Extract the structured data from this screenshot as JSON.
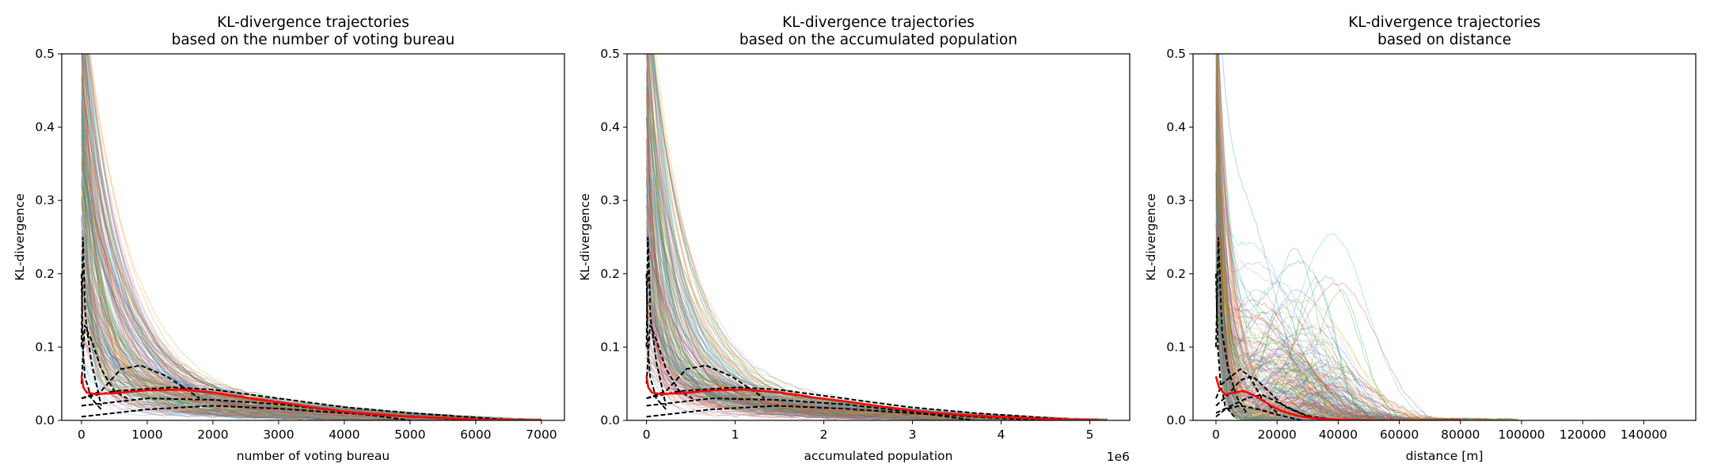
{
  "chart_data": [
    {
      "type": "line",
      "title": [
        "KL-divergence trajectories",
        "based on the number of voting bureau"
      ],
      "xlabel": "number of voting bureau",
      "ylabel": "KL-divergence",
      "offset_label": "",
      "xlim": [
        -300,
        7350
      ],
      "ylim": [
        0,
        0.5
      ],
      "xticks": [
        0,
        1000,
        2000,
        3000,
        4000,
        5000,
        6000,
        7000
      ],
      "xtick_labels": [
        "0",
        "1000",
        "2000",
        "3000",
        "4000",
        "5000",
        "6000",
        "7000"
      ],
      "yticks": [
        0.0,
        0.1,
        0.2,
        0.3,
        0.4,
        0.5
      ],
      "ytick_labels": [
        "0.0",
        "0.1",
        "0.2",
        "0.3",
        "0.4",
        "0.5"
      ],
      "grid": false,
      "trajectory_count": 200,
      "trajectory_x_end": 7000,
      "trajectory_shape": "decay",
      "median": {
        "color": "#ff0000",
        "x": [
          0,
          30,
          80,
          200,
          500,
          1000,
          1500,
          2000,
          2500,
          3000,
          3500,
          4000,
          4500,
          5000,
          5500,
          6000,
          6500,
          7000
        ],
        "y": [
          0.06,
          0.045,
          0.038,
          0.036,
          0.037,
          0.041,
          0.042,
          0.038,
          0.031,
          0.025,
          0.018,
          0.012,
          0.008,
          0.005,
          0.003,
          0.001,
          0.0005,
          0
        ]
      },
      "dashed": [
        {
          "x": [
            0,
            20,
            60,
            150,
            300
          ],
          "y": [
            0.1,
            0.25,
            0.14,
            0.08,
            0.02
          ]
        },
        {
          "x": [
            0,
            50,
            150,
            300,
            500,
            700
          ],
          "y": [
            0.05,
            0.13,
            0.11,
            0.07,
            0.04,
            0.03
          ]
        },
        {
          "x": [
            0,
            300,
            600,
            900,
            1300,
            1800
          ],
          "y": [
            0.03,
            0.04,
            0.07,
            0.075,
            0.06,
            0.03
          ]
        },
        {
          "x": [
            0,
            500,
            1000,
            1400,
            2000,
            3000,
            4000,
            5000,
            6000,
            6600
          ],
          "y": [
            0.03,
            0.04,
            0.043,
            0.045,
            0.042,
            0.03,
            0.018,
            0.01,
            0.004,
            0
          ]
        },
        {
          "x": [
            0,
            500,
            1000,
            2000,
            3000,
            4000,
            5000,
            6000
          ],
          "y": [
            0.005,
            0.01,
            0.015,
            0.02,
            0.016,
            0.01,
            0.005,
            0
          ]
        },
        {
          "x": [
            0,
            1000,
            2000,
            3000,
            4000,
            5000
          ],
          "y": [
            0.02,
            0.03,
            0.028,
            0.022,
            0.012,
            0
          ]
        },
        {
          "x": [
            0,
            20,
            50,
            150,
            300
          ],
          "y": [
            0.2,
            0.1,
            0.06,
            0.03,
            0.015
          ]
        }
      ]
    },
    {
      "type": "line",
      "title": [
        "KL-divergence trajectories",
        "based on the accumulated population"
      ],
      "xlabel": "accumulated population",
      "ylabel": "KL-divergence",
      "offset_label": "1e6",
      "xlim": [
        -0.22,
        5.45
      ],
      "ylim": [
        0,
        0.5
      ],
      "xticks": [
        0,
        1,
        2,
        3,
        4,
        5
      ],
      "xtick_labels": [
        "0",
        "1",
        "2",
        "3",
        "4",
        "5"
      ],
      "yticks": [
        0.0,
        0.1,
        0.2,
        0.3,
        0.4,
        0.5
      ],
      "ytick_labels": [
        "0.0",
        "0.1",
        "0.2",
        "0.3",
        "0.4",
        "0.5"
      ],
      "grid": false,
      "trajectory_count": 200,
      "trajectory_x_end": 5.2,
      "trajectory_shape": "decay",
      "median": {
        "color": "#ff0000",
        "x": [
          0,
          0.02,
          0.06,
          0.15,
          0.4,
          0.75,
          1.1,
          1.5,
          1.9,
          2.3,
          2.7,
          3.1,
          3.5,
          3.9,
          4.3,
          4.7,
          5.1
        ],
        "y": [
          0.06,
          0.045,
          0.038,
          0.036,
          0.037,
          0.041,
          0.042,
          0.038,
          0.031,
          0.025,
          0.018,
          0.012,
          0.008,
          0.005,
          0.003,
          0.001,
          0
        ]
      },
      "dashed": [
        {
          "x": [
            0,
            0.015,
            0.045,
            0.11,
            0.22
          ],
          "y": [
            0.1,
            0.25,
            0.14,
            0.08,
            0.02
          ]
        },
        {
          "x": [
            0,
            0.04,
            0.11,
            0.22,
            0.37,
            0.52
          ],
          "y": [
            0.05,
            0.13,
            0.11,
            0.07,
            0.04,
            0.03
          ]
        },
        {
          "x": [
            0,
            0.22,
            0.45,
            0.67,
            0.96,
            1.33
          ],
          "y": [
            0.03,
            0.04,
            0.07,
            0.075,
            0.06,
            0.03
          ]
        },
        {
          "x": [
            0,
            0.37,
            0.74,
            1.04,
            1.48,
            2.22,
            2.96,
            3.7,
            4.44,
            4.9
          ],
          "y": [
            0.03,
            0.04,
            0.043,
            0.045,
            0.042,
            0.03,
            0.018,
            0.01,
            0.004,
            0
          ]
        },
        {
          "x": [
            0,
            0.37,
            0.74,
            1.48,
            2.22,
            2.96,
            3.7,
            4.44
          ],
          "y": [
            0.005,
            0.01,
            0.015,
            0.02,
            0.016,
            0.01,
            0.005,
            0
          ]
        },
        {
          "x": [
            0,
            0.74,
            1.48,
            2.22,
            2.96,
            3.7
          ],
          "y": [
            0.02,
            0.03,
            0.028,
            0.022,
            0.012,
            0
          ]
        },
        {
          "x": [
            0,
            0.015,
            0.04,
            0.11,
            0.22
          ],
          "y": [
            0.2,
            0.1,
            0.06,
            0.03,
            0.015
          ]
        }
      ]
    },
    {
      "type": "line",
      "title": [
        "KL-divergence trajectories",
        "based on distance"
      ],
      "xlabel": "distance [m]",
      "ylabel": "KL-divergence",
      "offset_label": "",
      "xlim": [
        -7500,
        157000
      ],
      "ylim": [
        0,
        0.5
      ],
      "xticks": [
        0,
        20000,
        40000,
        60000,
        80000,
        100000,
        120000,
        140000
      ],
      "xtick_labels": [
        "0",
        "20000",
        "40000",
        "60000",
        "80000",
        "100000",
        "120000",
        "140000"
      ],
      "yticks": [
        0.0,
        0.1,
        0.2,
        0.3,
        0.4,
        0.5
      ],
      "ytick_labels": [
        "0.0",
        "0.1",
        "0.2",
        "0.3",
        "0.4",
        "0.5"
      ],
      "grid": false,
      "trajectory_count": 200,
      "trajectory_x_end": 100000,
      "trajectory_shape": "hump",
      "median": {
        "color": "#ff0000",
        "x": [
          0,
          1000,
          3000,
          6000,
          9000,
          12000,
          15000,
          18000,
          22000,
          26000,
          30000,
          35000,
          40000,
          50000,
          60000,
          80000
        ],
        "y": [
          0.06,
          0.045,
          0.035,
          0.038,
          0.04,
          0.035,
          0.028,
          0.02,
          0.012,
          0.007,
          0.004,
          0.002,
          0.001,
          0,
          0,
          0
        ]
      },
      "dashed": [
        {
          "x": [
            0,
            800,
            2000,
            4000,
            7000,
            10000
          ],
          "y": [
            0.1,
            0.25,
            0.12,
            0.07,
            0.03,
            0.01
          ]
        },
        {
          "x": [
            0,
            2000,
            5000,
            8000,
            11000,
            15000,
            20000
          ],
          "y": [
            0.03,
            0.05,
            0.06,
            0.07,
            0.06,
            0.03,
            0.01
          ]
        },
        {
          "x": [
            0,
            4000,
            8000,
            12000,
            16000,
            22000,
            30000
          ],
          "y": [
            0.02,
            0.035,
            0.055,
            0.06,
            0.045,
            0.02,
            0.005
          ]
        },
        {
          "x": [
            0,
            5000,
            10000,
            15000,
            20000,
            25000,
            30000,
            40000
          ],
          "y": [
            0.01,
            0.02,
            0.03,
            0.035,
            0.025,
            0.015,
            0.006,
            0
          ]
        },
        {
          "x": [
            0,
            3000,
            8000,
            14000,
            20000,
            28000
          ],
          "y": [
            0.005,
            0.015,
            0.02,
            0.015,
            0.008,
            0
          ]
        },
        {
          "x": [
            0,
            600,
            1500,
            3000,
            6000
          ],
          "y": [
            0.2,
            0.1,
            0.05,
            0.02,
            0.005
          ]
        }
      ]
    }
  ],
  "colors": {
    "palette": [
      "#1f77b4",
      "#ff7f0e",
      "#2ca02c",
      "#d62728",
      "#9467bd",
      "#8c564b",
      "#e377c2",
      "#7f7f7f",
      "#bcbd22",
      "#17becf"
    ],
    "dashed": "#000000",
    "median": "#ff0000"
  }
}
